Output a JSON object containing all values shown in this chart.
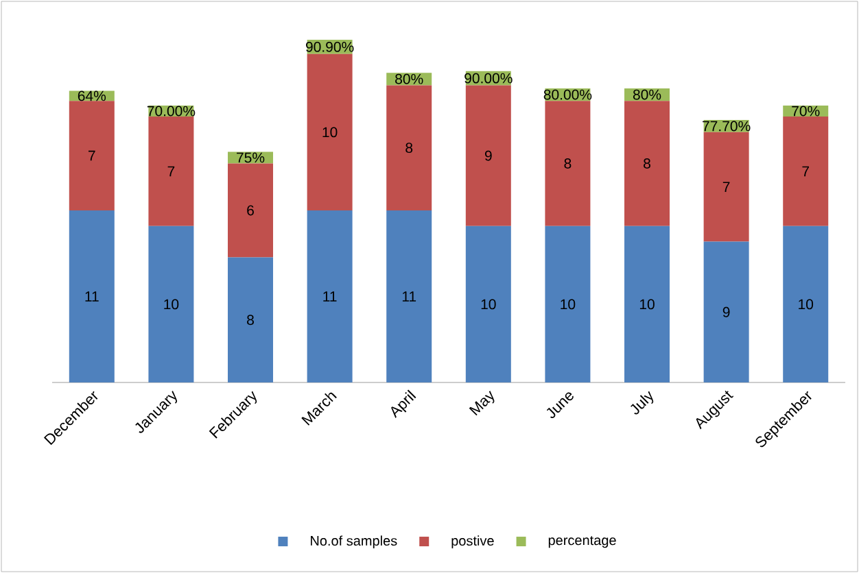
{
  "chart_data": {
    "type": "bar",
    "stacked": true,
    "legend": "bottom",
    "categories": [
      "December",
      "January",
      "February",
      "March",
      "April",
      "May",
      "June",
      "July",
      "August",
      "September"
    ],
    "series": [
      {
        "name": "No.of samples",
        "color": "#4f81bd",
        "values": [
          11,
          10,
          8,
          11,
          11,
          10,
          10,
          10,
          9,
          10
        ],
        "value_labels": [
          "11",
          "10",
          "8",
          "11",
          "11",
          "10",
          "10",
          "10",
          "9",
          "10"
        ]
      },
      {
        "name": "postive",
        "color": "#c0504d",
        "values": [
          7,
          7,
          6,
          10,
          8,
          9,
          8,
          8,
          7,
          7
        ],
        "value_labels": [
          "7",
          "7",
          "6",
          "10",
          "8",
          "9",
          "8",
          "8",
          "7",
          "7"
        ]
      },
      {
        "name": "percentage",
        "color": "#9bbb59",
        "values": [
          0.64,
          0.7,
          0.75,
          0.909,
          0.8,
          0.9,
          0.8,
          0.8,
          0.777,
          0.7
        ],
        "value_labels": [
          "64%",
          "70.00%",
          "75%",
          "90.90%",
          "80%",
          "90.00%",
          "80.00%",
          "80%",
          "77.70%",
          "70%"
        ]
      }
    ]
  }
}
